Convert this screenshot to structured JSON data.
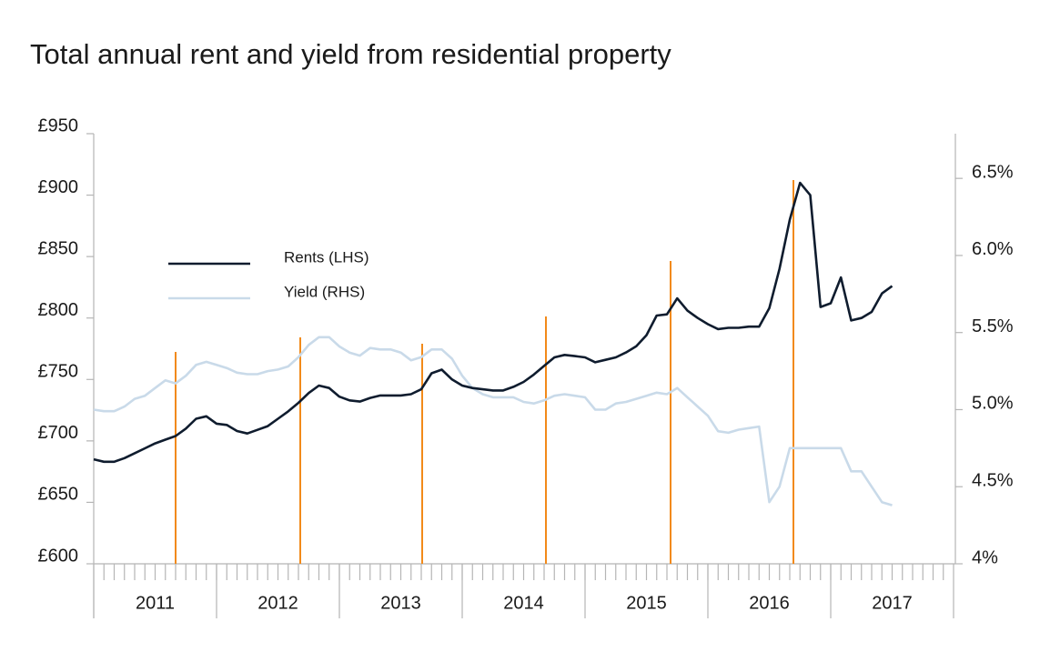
{
  "chart_data": {
    "type": "line",
    "title": "Total annual rent and yield from residential property",
    "x": [
      2011,
      2011.083,
      2011.167,
      2011.25,
      2011.333,
      2011.417,
      2011.5,
      2011.583,
      2011.667,
      2011.75,
      2011.833,
      2011.917,
      2012,
      2012.083,
      2012.167,
      2012.25,
      2012.333,
      2012.417,
      2012.5,
      2012.583,
      2012.667,
      2012.75,
      2012.833,
      2012.917,
      2013,
      2013.083,
      2013.167,
      2013.25,
      2013.333,
      2013.417,
      2013.5,
      2013.583,
      2013.667,
      2013.75,
      2013.833,
      2013.917,
      2014,
      2014.083,
      2014.167,
      2014.25,
      2014.333,
      2014.417,
      2014.5,
      2014.583,
      2014.667,
      2014.75,
      2014.833,
      2014.917,
      2015,
      2015.083,
      2015.167,
      2015.25,
      2015.333,
      2015.417,
      2015.5,
      2015.583,
      2015.667,
      2015.75,
      2015.833,
      2015.917,
      2016,
      2016.083,
      2016.167,
      2016.25,
      2016.333,
      2016.417,
      2016.5,
      2016.583,
      2016.667,
      2016.75,
      2016.833,
      2016.917,
      2017,
      2017.083,
      2017.167,
      2017.25,
      2017.333,
      2017.417,
      2017.5
    ],
    "series": [
      {
        "name": "Rents (LHS)",
        "color": "#0f1c2e",
        "values": [
          685,
          683,
          683,
          686,
          690,
          694,
          698,
          701,
          704,
          710,
          718,
          720,
          714,
          713,
          708,
          706,
          709,
          712,
          718,
          724,
          731,
          739,
          745,
          743,
          736,
          733,
          732,
          735,
          737,
          737,
          737,
          738,
          742,
          755,
          758,
          750,
          745,
          743,
          742,
          741,
          741,
          744,
          748,
          754,
          761,
          768,
          770,
          769,
          768,
          764,
          766,
          768,
          772,
          777,
          786,
          802,
          803,
          816,
          806,
          800,
          795,
          791,
          792,
          792,
          793,
          793,
          808,
          840,
          880,
          910,
          900,
          809,
          812,
          833,
          798,
          800,
          805,
          820,
          826
        ]
      },
      {
        "name": "Yield (RHS)",
        "color": "#c9dae9",
        "axis": "y2",
        "values": [
          5.0,
          4.99,
          4.99,
          5.02,
          5.07,
          5.09,
          5.14,
          5.19,
          5.17,
          5.22,
          5.29,
          5.31,
          5.29,
          5.27,
          5.24,
          5.23,
          5.23,
          5.25,
          5.26,
          5.28,
          5.34,
          5.42,
          5.47,
          5.47,
          5.41,
          5.37,
          5.35,
          5.4,
          5.39,
          5.39,
          5.37,
          5.32,
          5.34,
          5.39,
          5.39,
          5.33,
          5.22,
          5.14,
          5.1,
          5.08,
          5.08,
          5.08,
          5.05,
          5.04,
          5.06,
          5.09,
          5.1,
          5.09,
          5.08,
          5.0,
          5.0,
          5.04,
          5.05,
          5.07,
          5.09,
          5.11,
          5.1,
          5.14,
          5.08,
          5.02,
          4.96,
          4.86,
          4.85,
          4.87,
          4.88,
          4.89,
          4.4,
          4.5,
          4.75,
          4.75,
          4.75,
          4.75,
          4.75,
          4.75,
          4.6,
          4.6,
          4.5,
          4.4,
          4.38
        ]
      }
    ],
    "xlim": [
      2011,
      2018
    ],
    "xticks": [
      2011,
      2012,
      2013,
      2014,
      2015,
      2016,
      2017
    ],
    "ylim": [
      600,
      950
    ],
    "yticks": [
      {
        "value": 600,
        "label": "£600"
      },
      {
        "value": 650,
        "label": "£650"
      },
      {
        "value": 700,
        "label": "£700"
      },
      {
        "value": 750,
        "label": "£750"
      },
      {
        "value": 800,
        "label": "£800"
      },
      {
        "value": 850,
        "label": "£850"
      },
      {
        "value": 900,
        "label": "£900"
      },
      {
        "value": 950,
        "label": "£950"
      }
    ],
    "y2lim": [
      4,
      6.79
    ],
    "y2ticks": [
      {
        "value": 4,
        "label": "4%"
      },
      {
        "value": 4.5,
        "label": "4.5%"
      },
      {
        "value": 5,
        "label": "5.0%"
      },
      {
        "value": 5.5,
        "label": "5.5%"
      },
      {
        "value": 6,
        "label": "6.0%"
      },
      {
        "value": 6.5,
        "label": "6.5%"
      }
    ],
    "grid": false
  }
}
